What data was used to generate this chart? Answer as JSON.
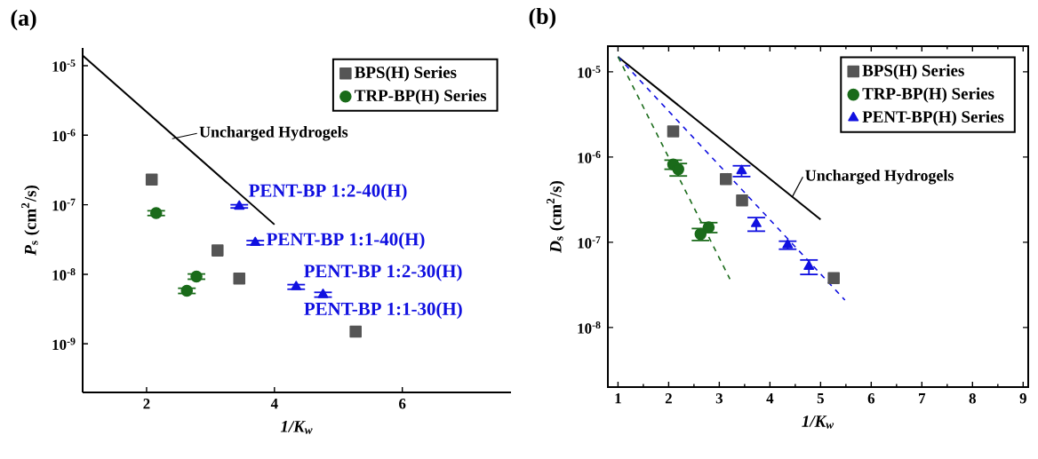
{
  "chart_data": [
    {
      "type": "scatter",
      "title": "(a)",
      "xlabel": "1/K$_{w}$",
      "ylabel": "*P*$_{s}$ (cm$^{2}$/s)",
      "log": "y",
      "legend": "top right",
      "xlim": [
        1,
        7.7
      ],
      "xticks": [
        2,
        4,
        6
      ],
      "ylim": [
        2e-10,
        1.8e-05
      ],
      "yticks": [
        {
          "value": 1e-05,
          "label": "10$^{-5}$"
        },
        {
          "value": 1e-06,
          "label": "10$^{-6}$"
        },
        {
          "value": 1e-07,
          "label": "10$^{-7}$"
        },
        {
          "value": 1e-08,
          "label": "10$^{-8}$"
        },
        {
          "value": 1e-09,
          "label": "10$^{-9}$"
        }
      ],
      "series": [
        {
          "name": "BPS(H) Series",
          "color": "#555555",
          "marker": "square",
          "x": [
            2.08,
            3.11,
            3.45,
            5.27
          ],
          "values": [
            2.3e-07,
            2.2e-08,
            8.7e-09,
            1.5e-09
          ]
        },
        {
          "name": "TRP-BP(H) Series",
          "color": "#1a6b1a",
          "marker": "circle",
          "x": [
            2.15,
            2.63,
            2.78
          ],
          "values": [
            7.6e-08,
            5.8e-09,
            9.3e-09
          ],
          "errors": [
            6e-09,
            5e-10,
            8e-10
          ]
        },
        {
          "color": "#1010e0",
          "marker": "triangle",
          "x": [
            3.45,
            3.7,
            4.34,
            4.76
          ],
          "values": [
            9.5e-08,
            2.85e-08,
            6.6e-09,
            5.1e-09
          ],
          "errors": [
            5e-09,
            2e-09,
            5e-10,
            4e-10
          ]
        },
        {
          "type": "line",
          "color": "#000000",
          "marker": "none",
          "line_style": "solid",
          "x": [
            1,
            4.0
          ],
          "values": [
            1.4e-05,
            5.2e-08
          ]
        }
      ],
      "annotations": [
        {
          "text": "Uncharged Hydrogels",
          "x": 2.4,
          "y": 8.9e-07
        },
        {
          "text": "PENT-BP 1:2-40(H)",
          "x": 3.45,
          "y": 9.5e-08
        },
        {
          "text": "PENT-BP 1:1-40(H)",
          "x": 3.7,
          "y": 2.85e-08
        },
        {
          "text": "PENT-BP 1:2-30(H)",
          "x": 4.34,
          "y": 6.6e-09
        },
        {
          "text": "PENT-BP 1:1-30(H)",
          "x": 4.76,
          "y": 5.1e-09
        }
      ]
    },
    {
      "type": "scatter",
      "title": "(b)",
      "xlabel": "1/K$_{w}$",
      "ylabel": "*D*$_{s}$ (cm$^{2}$/s)",
      "log": "y",
      "legend": "top right",
      "xlim": [
        0.8,
        9.1
      ],
      "xticks": [
        1,
        2,
        3,
        4,
        5,
        6,
        7,
        8,
        9
      ],
      "ylim": [
        2e-09,
        2e-05
      ],
      "yticks": [
        {
          "value": 1e-05,
          "label": "10$^{-5}$"
        },
        {
          "value": 1e-06,
          "label": "10$^{-6}$"
        },
        {
          "value": 1e-07,
          "label": "10$^{-7}$"
        },
        {
          "value": 1e-08,
          "label": "10$^{-8}$"
        }
      ],
      "series": [
        {
          "name": "BPS(H) Series",
          "color": "#555555",
          "marker": "square",
          "x": [
            2.09,
            3.13,
            3.45,
            5.26
          ],
          "values": [
            2e-06,
            5.5e-07,
            3.1e-07,
            3.8e-08
          ]
        },
        {
          "name": "TRP-BP(H) Series",
          "color": "#1a6b1a",
          "marker": "circle",
          "x": [
            2.09,
            2.19,
            2.63,
            2.79
          ],
          "values": [
            8.2e-07,
            7.2e-07,
            1.25e-07,
            1.5e-07
          ],
          "errors": [
            1e-07,
            1.2e-07,
            2e-08,
            2e-08
          ]
        },
        {
          "name": "PENT-BP(H) Series",
          "color": "#1010e0",
          "marker": "triangle",
          "x": [
            3.44,
            3.73,
            4.35,
            4.77
          ],
          "values": [
            6.9e-07,
            1.65e-07,
            9.3e-08,
            5.2e-08
          ],
          "errors": [
            1e-07,
            3e-08,
            1e-08,
            1e-08
          ]
        },
        {
          "type": "line",
          "color": "#000000",
          "marker": "none",
          "line_style": "solid",
          "x": [
            1,
            5
          ],
          "values": [
            1.5e-05,
            1.85e-07
          ]
        },
        {
          "type": "line",
          "color": "#1010e0",
          "marker": "none",
          "line_style": "dashed",
          "x": [
            1,
            5.48
          ],
          "values": [
            1.5e-05,
            2.1e-08
          ]
        },
        {
          "type": "line",
          "color": "#1a6b1a",
          "marker": "none",
          "line_style": "dashed",
          "x": [
            1,
            3.21
          ],
          "values": [
            1.5e-05,
            3.7e-08
          ]
        }
      ],
      "annotations": [
        {
          "text": "Uncharged Hydrogels",
          "x": 4.44,
          "y": 3.4e-07
        }
      ]
    }
  ]
}
